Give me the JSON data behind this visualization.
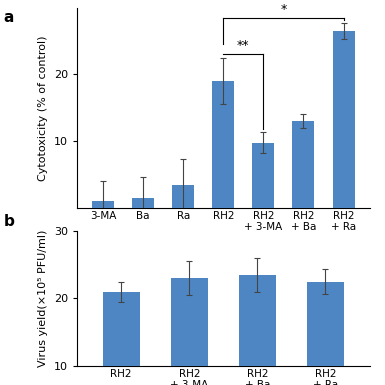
{
  "panel_a": {
    "categories": [
      "3-MA",
      "Ba",
      "Ra",
      "RH2",
      "RH2\n+ 3-MA",
      "RH2\n+ Ba",
      "RH2\n+ Ra"
    ],
    "values": [
      1.0,
      1.5,
      3.5,
      19.0,
      9.8,
      13.0,
      26.5
    ],
    "errors": [
      3.0,
      3.2,
      3.8,
      3.5,
      1.5,
      1.0,
      1.2
    ],
    "ylabel": "Cytotoxicity (% of control)",
    "ylim": [
      0,
      30
    ],
    "yticks": [
      10,
      20
    ],
    "bar_color": "#4e86c4"
  },
  "panel_b": {
    "categories": [
      "RH2",
      "RH2\n+ 3-MA",
      "RH2\n+ Ba",
      "RH2\n+ Ra"
    ],
    "values": [
      21.0,
      23.0,
      23.5,
      22.5
    ],
    "errors": [
      1.5,
      2.5,
      2.5,
      1.8
    ],
    "ylabel": "Virus yield(×10⁵ PFU/ml)",
    "ylim": [
      10,
      30
    ],
    "yticks": [
      10,
      20,
      30
    ],
    "bar_color": "#4e86c4"
  },
  "background_color": "#ffffff"
}
